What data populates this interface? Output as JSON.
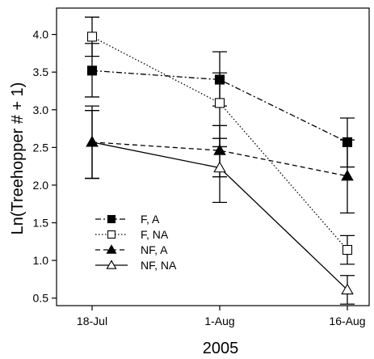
{
  "chart_data": {
    "type": "line",
    "xlabel": "2005",
    "ylabel": "Ln(Treehopper # + 1)",
    "categories": [
      "18-Jul",
      "1-Aug",
      "16-Aug"
    ],
    "ylim": [
      0.4,
      4.35
    ],
    "yticks": [
      "0.5",
      "1.0",
      "1.5",
      "2.0",
      "2.5",
      "3.0",
      "3.5",
      "4.0"
    ],
    "grid": false,
    "legend_position": "bottom-left",
    "series": [
      {
        "name": "F, A",
        "marker": "filled-square",
        "line_style": "dash-dot",
        "values": [
          3.52,
          3.4,
          2.57
        ],
        "error_low": [
          3.17,
          3.05,
          2.24
        ],
        "error_high": [
          3.88,
          3.77,
          2.89
        ]
      },
      {
        "name": "F, NA",
        "marker": "open-square",
        "line_style": "dotted",
        "values": [
          3.97,
          3.09,
          1.14
        ],
        "error_low": [
          3.71,
          2.51,
          0.95
        ],
        "error_high": [
          4.23,
          3.49,
          1.33
        ]
      },
      {
        "name": "NF, A",
        "marker": "filled-triangle",
        "line_style": "dashed",
        "values": [
          2.57,
          2.46,
          2.12
        ],
        "error_low": [
          2.09,
          2.11,
          1.63
        ],
        "error_high": [
          3.05,
          2.79,
          2.6
        ]
      },
      {
        "name": "NF, NA",
        "marker": "open-triangle",
        "line_style": "solid",
        "values": [
          2.57,
          2.23,
          0.61
        ],
        "error_low": [
          2.09,
          1.77,
          0.42
        ],
        "error_high": [
          2.99,
          2.62,
          0.8
        ]
      }
    ]
  }
}
